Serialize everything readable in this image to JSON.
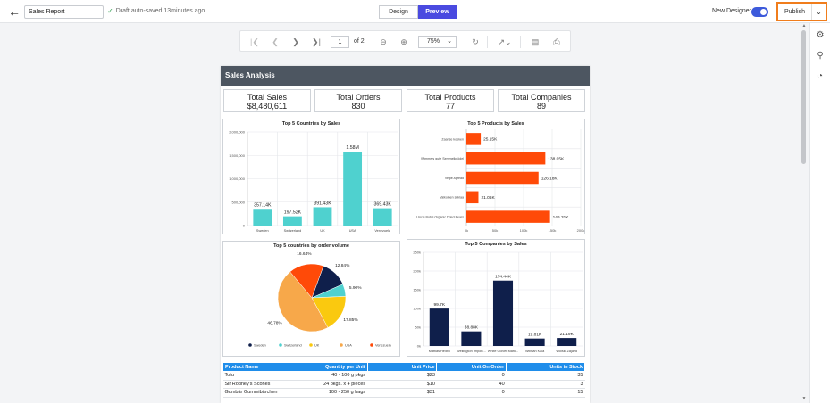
{
  "topbar": {
    "back_icon": "arrow-left-icon",
    "report_name": "Sales Report",
    "autosave_text": "Draft auto-saved 13minutes ago",
    "modes": [
      "Design",
      "Preview"
    ],
    "active_mode": "Preview",
    "designer_label": "New Designer",
    "designer_on": true,
    "publish_label": "Publish",
    "accent": "#4a4ae0",
    "highlight": "#f07d1c"
  },
  "viewer": {
    "page_number": "1",
    "page_of": "of 2",
    "zoom": "75%"
  },
  "report": {
    "header": "Sales Analysis",
    "kpis": [
      {
        "title": "Total Sales",
        "value": "$8,480,611"
      },
      {
        "title": "Total Orders",
        "value": "830"
      },
      {
        "title": "Total Products",
        "value": "77"
      },
      {
        "title": "Total Companies",
        "value": "89"
      }
    ],
    "table": {
      "headers": [
        "Product Name",
        "Quantity per Unit",
        "Unit Price",
        "Unit On Order",
        "Units in Stock"
      ],
      "rows": [
        [
          "Tofu",
          "40 - 100 g pkgs",
          "$23",
          "0",
          "35"
        ],
        [
          "Sir Rodney's Scones",
          "24 pkgs. x 4 pieces",
          "$10",
          "40",
          "3"
        ],
        [
          "Gumbär Gummibärchen",
          "100 - 250 g bags",
          "$31",
          "0",
          "15"
        ]
      ],
      "header_color": "#1f8dea"
    }
  },
  "chart_data": [
    {
      "type": "bar",
      "title": "Top 5 Countries by Sales",
      "categories": [
        "Sweden",
        "Switzerland",
        "UK",
        "USA",
        "Venezuela"
      ],
      "values": [
        357140,
        197520,
        391430,
        1580000,
        369430
      ],
      "data_labels": [
        "357.14K",
        "197.52K",
        "391.43K",
        "1.58M",
        "369.43K"
      ],
      "y_ticks": [
        "0",
        "500,000",
        "1,000,000",
        "1,500,000",
        "2,000,000"
      ],
      "ylim": [
        0,
        2000000
      ],
      "color": "#4fd1cf"
    },
    {
      "type": "bar",
      "orientation": "horizontal",
      "title": "Top 5 Products by Sales",
      "categories": [
        "Zaanse koeken",
        "Wimmers gute Semmelknödel",
        "Vegie-spread",
        "Valkoinen suklaa",
        "Uncle Bob's Organic Dried Pears"
      ],
      "values": [
        25150,
        138050,
        126180,
        21060,
        146310
      ],
      "data_labels": [
        "25.15K",
        "138.05K",
        "126.18K",
        "21.06K",
        "146.31K"
      ],
      "x_ticks": [
        "0k",
        "50k",
        "100k",
        "150k",
        "200k"
      ],
      "xlim": [
        0,
        200000
      ],
      "color": "#ff4a08"
    },
    {
      "type": "pie",
      "title": "Top 5 countries by order volume",
      "labels": [
        "Sweden",
        "Switzerland",
        "UK",
        "USA",
        "Venezuela"
      ],
      "values": [
        12.84,
        5.9,
        17.85,
        46.78,
        16.64
      ],
      "data_labels": [
        "12.84%",
        "5.90%",
        "17.85%",
        "46.78%",
        "16.64%"
      ],
      "colors": [
        "#0f1f4b",
        "#4fd1cf",
        "#fac90f",
        "#f7a84a",
        "#ff4a08"
      ],
      "legend": "bottom"
    },
    {
      "type": "bar",
      "title": "Top 5 Companies by Sales",
      "categories": [
        "Mattias Hellbo",
        "Wellington Import...",
        "White Clover Mark...",
        "Wilman Kala",
        "Wolski Zajazd"
      ],
      "values": [
        99700,
        38880,
        174440,
        19810,
        21190
      ],
      "data_labels": [
        "99.7K",
        "38.88K",
        "174.44K",
        "19.81K",
        "21.19K"
      ],
      "y_ticks": [
        "0k",
        "50k",
        "100k",
        "150k",
        "200k",
        "250k"
      ],
      "ylim": [
        0,
        250000
      ],
      "color": "#0f1f4b"
    }
  ]
}
